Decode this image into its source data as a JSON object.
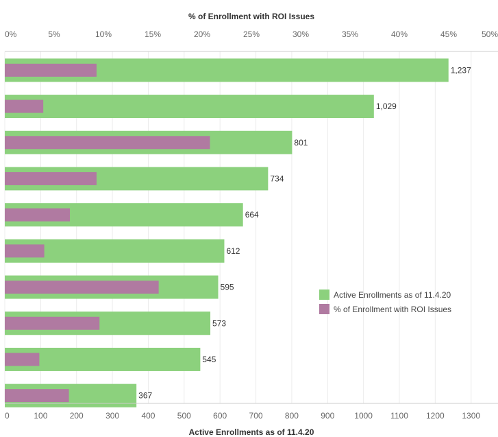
{
  "chart_data": {
    "type": "bar",
    "orientation": "horizontal",
    "dual_axis": true,
    "top_axis": {
      "title": "% of Enrollment with ROI Issues",
      "range": [
        0,
        50
      ],
      "ticks": [
        "0%",
        "5%",
        "10%",
        "15%",
        "20%",
        "25%",
        "30%",
        "35%",
        "40%",
        "45%",
        "50%"
      ]
    },
    "bottom_axis": {
      "title": "Active Enrollments as of  11.4.20",
      "range": [
        0,
        1375
      ],
      "ticks": [
        "0",
        "100",
        "200",
        "300",
        "400",
        "500",
        "600",
        "700",
        "800",
        "900",
        "1000",
        "1100",
        "1200",
        "1300"
      ]
    },
    "grid": true,
    "legend_position": "right",
    "series": [
      {
        "name": "Active Enrollments as of  11.4.20",
        "color": "#8cd17d",
        "values": [
          1237,
          1029,
          801,
          734,
          664,
          612,
          595,
          573,
          545,
          367
        ],
        "labels": [
          "1,237",
          "1,029",
          "801",
          "734",
          "664",
          "612",
          "595",
          "573",
          "545",
          "367"
        ]
      },
      {
        "name": "% of Enrollment with ROI Issues",
        "color": "#b07aa1",
        "values": [
          9.3,
          3.9,
          20.8,
          9.3,
          6.6,
          4.0,
          15.6,
          9.6,
          3.5,
          6.5
        ]
      }
    ]
  }
}
